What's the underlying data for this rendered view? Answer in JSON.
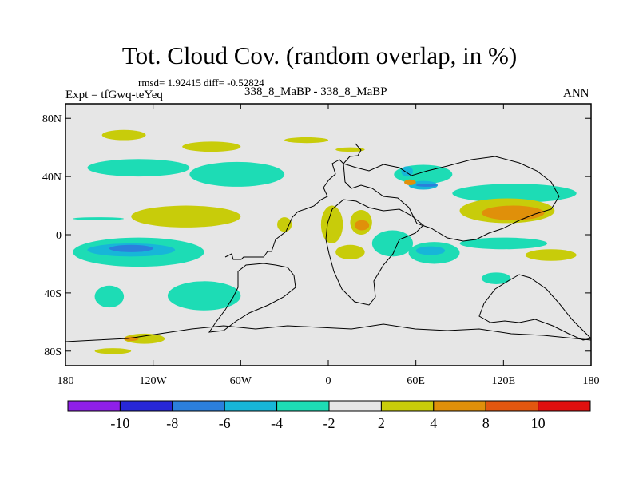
{
  "title": "Tot. Cloud Cov. (random overlap, in %)",
  "stats_text": "rmsd= 1.92415 diff= -0.52824",
  "expt_text": "Expt = tfGwq-teYeq",
  "center_label": "338_8_MaBP - 338_8_MaBP",
  "season": "ANN",
  "colors": {
    "background_fill": "#e6e6e6",
    "levels": [
      "#8f1fe8",
      "#2727d6",
      "#2b7fdc",
      "#17b6d8",
      "#1ddcb5",
      "#e6e6e6",
      "#c8cc0a",
      "#e0900a",
      "#e25710",
      "#e0100f"
    ]
  },
  "chart_data": {
    "type": "heatmap",
    "title": "Tot. Cloud Cov. (random overlap, in %)",
    "x_axis": {
      "range": [
        -180,
        180
      ],
      "ticks": [
        -180,
        -120,
        -60,
        0,
        60,
        120,
        180
      ],
      "tick_labels": [
        "180",
        "120W",
        "60W",
        "0",
        "60E",
        "120E",
        "180"
      ]
    },
    "y_axis": {
      "range": [
        -90,
        90
      ],
      "ticks": [
        80,
        40,
        0,
        -40,
        -80
      ],
      "tick_labels": [
        "80N",
        "40N",
        "0",
        "40S",
        "80S"
      ]
    },
    "colorbar": {
      "levels": [
        -10,
        -8,
        -6,
        -4,
        -2,
        2,
        4,
        8,
        10
      ],
      "tick_labels": [
        "-10",
        "-8",
        "-6",
        "-4",
        "-2",
        "2",
        "4",
        "8",
        "10"
      ],
      "colors": [
        "#8f1fe8",
        "#2727d6",
        "#2b7fdc",
        "#17b6d8",
        "#1ddcb5",
        "#e6e6e6",
        "#c8cc0a",
        "#e0900a",
        "#e25710",
        "#e0100f"
      ]
    },
    "anomaly_regions": [
      {
        "lon": [
          -165,
          -95
        ],
        "lat": [
          40,
          52
        ],
        "class": "-4 to -2"
      },
      {
        "lon": [
          -95,
          -30
        ],
        "lat": [
          33,
          50
        ],
        "class": "-4 to -2"
      },
      {
        "lon": [
          -175,
          -140
        ],
        "lat": [
          10,
          12
        ],
        "class": "-4 to -2"
      },
      {
        "lon": [
          -100,
          -60
        ],
        "lat": [
          57,
          64
        ],
        "class": "2 to 4"
      },
      {
        "lon": [
          -30,
          0
        ],
        "lat": [
          63,
          67
        ],
        "class": "2 to 4"
      },
      {
        "lon": [
          5,
          25
        ],
        "lat": [
          57,
          60
        ],
        "class": "2 to 4"
      },
      {
        "lon": [
          45,
          85
        ],
        "lat": [
          35,
          48
        ],
        "class": "-4 to -2"
      },
      {
        "lon": [
          50,
          58
        ],
        "lat": [
          40,
          47
        ],
        "class": "-6 to -4"
      },
      {
        "lon": [
          55,
          75
        ],
        "lat": [
          31,
          37
        ],
        "class": "-6 to -4"
      },
      {
        "lon": [
          60,
          75
        ],
        "lat": [
          33,
          35
        ],
        "class": "-8 to -6"
      },
      {
        "lon": [
          52,
          60
        ],
        "lat": [
          34,
          38
        ],
        "class": "4 to 8"
      },
      {
        "lon": [
          85,
          170
        ],
        "lat": [
          22,
          35
        ],
        "class": "-4 to -2"
      },
      {
        "lon": [
          90,
          155
        ],
        "lat": [
          8,
          25
        ],
        "class": "2 to 4"
      },
      {
        "lon": [
          105,
          148
        ],
        "lat": [
          10,
          20
        ],
        "class": "4 to 8"
      },
      {
        "lon": [
          -135,
          -60
        ],
        "lat": [
          5,
          20
        ],
        "class": "2 to 4"
      },
      {
        "lon": [
          -175,
          -85
        ],
        "lat": [
          -22,
          -2
        ],
        "class": "-4 to -2"
      },
      {
        "lon": [
          -165,
          -105
        ],
        "lat": [
          -15,
          -6
        ],
        "class": "-6 to -4"
      },
      {
        "lon": [
          -150,
          -120
        ],
        "lat": [
          -12,
          -7
        ],
        "class": "-8 to -6"
      },
      {
        "lon": [
          -160,
          -140
        ],
        "lat": [
          -50,
          -35
        ],
        "class": "-4 to -2"
      },
      {
        "lon": [
          -110,
          -60
        ],
        "lat": [
          -52,
          -32
        ],
        "class": "-4 to -2"
      },
      {
        "lon": [
          -140,
          -112
        ],
        "lat": [
          -75,
          -68
        ],
        "class": "2 to 4"
      },
      {
        "lon": [
          -140,
          -130
        ],
        "lat": [
          -73,
          -70
        ],
        "class": "4 to 8"
      },
      {
        "lon": [
          -160,
          -135
        ],
        "lat": [
          -82,
          -78
        ],
        "class": "2 to 4"
      },
      {
        "lon": [
          -5,
          10
        ],
        "lat": [
          -6,
          20
        ],
        "class": "2 to 4"
      },
      {
        "lon": [
          15,
          30
        ],
        "lat": [
          0,
          17
        ],
        "class": "2 to 4"
      },
      {
        "lon": [
          18,
          28
        ],
        "lat": [
          3,
          10
        ],
        "class": "4 to 8"
      },
      {
        "lon": [
          -35,
          -25
        ],
        "lat": [
          2,
          12
        ],
        "class": "2 to 4"
      },
      {
        "lon": [
          30,
          58
        ],
        "lat": [
          -15,
          3
        ],
        "class": "-4 to -2"
      },
      {
        "lon": [
          55,
          90
        ],
        "lat": [
          -20,
          -5
        ],
        "class": "-4 to -2"
      },
      {
        "lon": [
          60,
          80
        ],
        "lat": [
          -14,
          -8
        ],
        "class": "-6 to -4"
      },
      {
        "lon": [
          90,
          150
        ],
        "lat": [
          -10,
          -2
        ],
        "class": "-4 to -2"
      },
      {
        "lon": [
          135,
          170
        ],
        "lat": [
          -18,
          -10
        ],
        "class": "2 to 4"
      },
      {
        "lon": [
          105,
          125
        ],
        "lat": [
          -34,
          -26
        ],
        "class": "-4 to -2"
      },
      {
        "lon": [
          5,
          25
        ],
        "lat": [
          -17,
          -7
        ],
        "class": "2 to 4"
      },
      {
        "lon": [
          -155,
          -125
        ],
        "lat": [
          65,
          72
        ],
        "class": "2 to 4"
      }
    ]
  }
}
